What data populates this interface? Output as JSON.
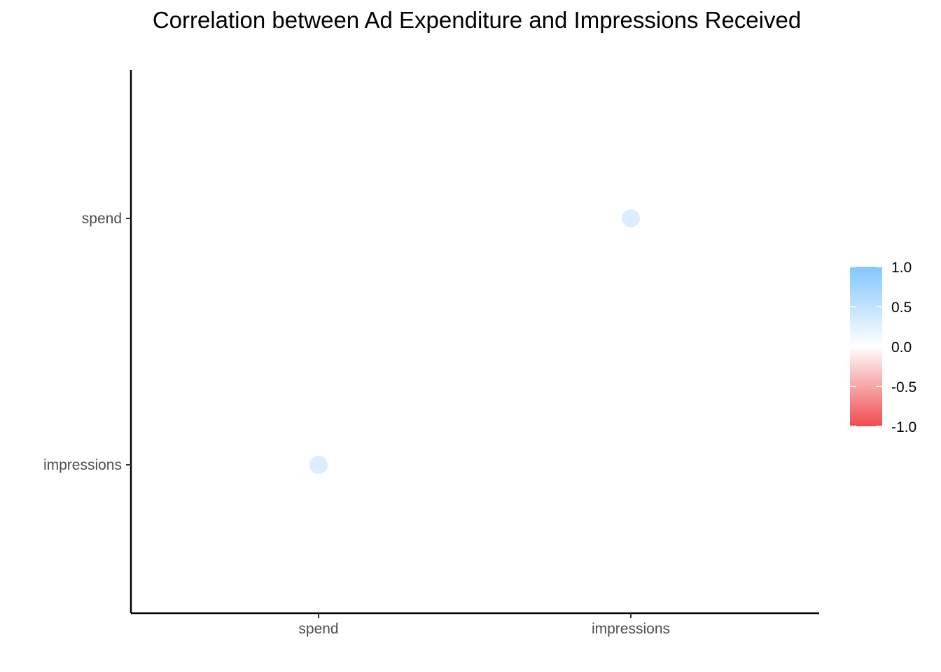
{
  "chart_data": {
    "type": "scatter",
    "title": "Correlation between Ad Expenditure and Impressions Received",
    "xlabel": "",
    "ylabel": "",
    "x_categories": [
      "spend",
      "impressions"
    ],
    "y_categories": [
      "impressions",
      "spend"
    ],
    "points": [
      {
        "x": "spend",
        "y": "impressions",
        "value": 0.3
      },
      {
        "x": "impressions",
        "y": "spend",
        "value": 0.3
      }
    ],
    "legend": {
      "position": "right",
      "ticks": [
        "1.0",
        "0.5",
        "0.0",
        "-0.5",
        "-1.0"
      ],
      "range": [
        -1,
        1
      ],
      "colors": {
        "low": "#ee4b4f",
        "mid": "#ffffff",
        "high": "#82c6ff"
      }
    },
    "grid": false
  }
}
